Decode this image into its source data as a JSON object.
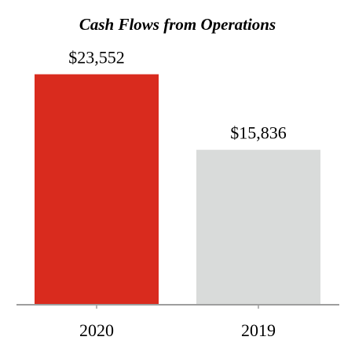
{
  "chart_data": {
    "type": "bar",
    "title": "Cash Flows from Operations",
    "categories": [
      "2020",
      "2019"
    ],
    "values": [
      23552,
      15836
    ],
    "value_labels": [
      "$23,552",
      "$15,836"
    ],
    "colors": [
      "#d92b1e",
      "#d9dbda"
    ],
    "ylim": [
      0,
      24400
    ],
    "grid": false,
    "legend": "none",
    "axis_color": "#9e9e9e"
  }
}
